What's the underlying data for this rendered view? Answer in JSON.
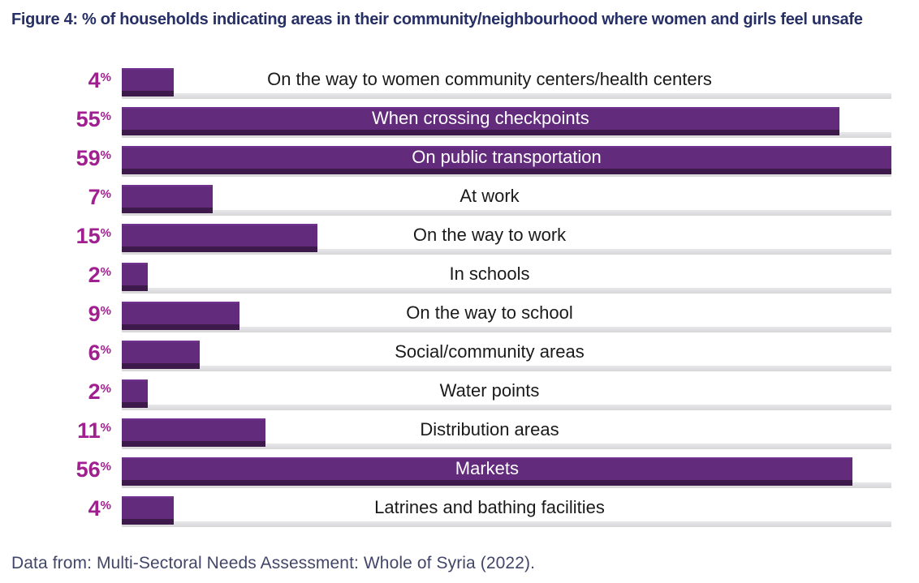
{
  "title": "Figure 4: % of households indicating areas in their community/neighbourhood where women and girls feel unsafe",
  "footer": "Data from: Multi-Sectoral Needs Assessment: Whole of Syria (2022).",
  "percent_sign": "%",
  "colors": {
    "bar_fill": "#622b7c",
    "bar_bottom_edge": "#3e1a4c",
    "track_gray": "#dedee0",
    "value_label_magenta": "#a0208f",
    "title_navy": "#262f66",
    "footer_slate": "#424668",
    "label_on_bar": "#ffffff",
    "label_off_bar": "#1a1a1a"
  },
  "chart_data": {
    "type": "bar",
    "orientation": "horizontal",
    "title": "Figure 4: % of households indicating areas in their community/neighbourhood where women and girls feel unsafe",
    "unit": "%",
    "xlim": [
      0,
      59
    ],
    "grid": false,
    "legend": false,
    "value_labels_position": "left of bars",
    "category_labels_position": "centered over row (white text on bar when bar is long)",
    "categories": [
      "On the way to women community centers/health centers",
      "When crossing checkpoints",
      "On public transportation",
      "At work",
      "On the way to work",
      "In schools",
      "On the way to school",
      "Social/community areas",
      "Water points",
      "Distribution areas",
      "Markets",
      "Latrines and bathing facilities"
    ],
    "values": [
      4,
      55,
      59,
      7,
      15,
      2,
      9,
      6,
      2,
      11,
      56,
      4
    ],
    "source": "Data from: Multi-Sectoral Needs Assessment: Whole of Syria (2022)."
  }
}
